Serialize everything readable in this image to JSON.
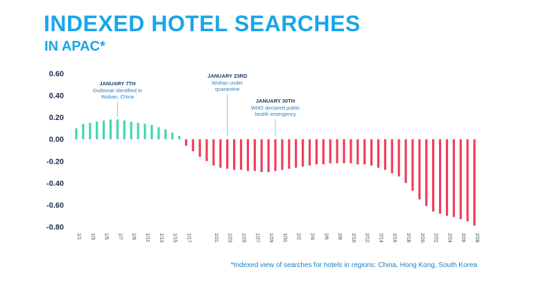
{
  "header": {
    "title": "INDEXED HOTEL SEARCHES",
    "subtitle": "IN APAC*"
  },
  "footnote": "*Indexed view of searches for hotels in regions: China, Hong Kong, South Korea",
  "colors": {
    "title": "#1aa6e8",
    "positive": "#3fd6b0",
    "negative": "#ee3d5b",
    "annotation_line": "#7cc8ee"
  },
  "chart_data": {
    "type": "bar",
    "title": "INDEXED HOTEL SEARCHES",
    "subtitle": "IN APAC*",
    "xlabel": "",
    "ylabel": "",
    "ylim": [
      -0.8,
      0.6
    ],
    "yticks": [
      "0.60",
      "0.40",
      "0.20",
      "0.00",
      "-0.20",
      "-0.40",
      "-0.60",
      "-0.80"
    ],
    "grid": false,
    "legend": "none",
    "categories": [
      "1/1",
      "1/2",
      "1/3",
      "1/4",
      "1/5",
      "1/6",
      "1/7",
      "1/8",
      "1/9",
      "1/10",
      "1/11",
      "1/12",
      "1/13",
      "1/14",
      "1/15",
      "1/16",
      "1/17",
      "1/18",
      "1/19",
      "1/20",
      "1/21",
      "1/22",
      "1/23",
      "1/24",
      "1/25",
      "1/26",
      "1/27",
      "1/28",
      "1/29",
      "1/30",
      "1/31",
      "2/1",
      "2/2",
      "2/3",
      "2/4",
      "2/5",
      "2/6",
      "2/7",
      "2/8",
      "2/9",
      "2/10",
      "2/11",
      "2/12",
      "2/13",
      "2/14",
      "2/15",
      "2/16",
      "2/17",
      "2/18",
      "2/19",
      "2/20",
      "2/21",
      "2/22",
      "2/23",
      "2/24",
      "2/25",
      "2/26",
      "2/27",
      "2/28"
    ],
    "x_tick_labels": [
      "1/1",
      "1/3",
      "1/5",
      "1/7",
      "1/9",
      "1/11",
      "1/13",
      "1/15",
      "1/17",
      "1/21",
      "1/23",
      "1/25",
      "1/27",
      "1/29",
      "1/31",
      "2/2",
      "2/4",
      "2/6",
      "2/8",
      "2/10",
      "2/12",
      "2/14",
      "2/16",
      "2/18",
      "2/20",
      "2/22",
      "2/24",
      "2/26",
      "2/28"
    ],
    "values": [
      0.1,
      0.14,
      0.15,
      0.16,
      0.17,
      0.18,
      0.18,
      0.17,
      0.16,
      0.15,
      0.14,
      0.13,
      0.11,
      0.09,
      0.06,
      0.03,
      -0.06,
      -0.11,
      -0.16,
      -0.2,
      -0.24,
      -0.26,
      -0.27,
      -0.28,
      -0.28,
      -0.29,
      -0.29,
      -0.3,
      -0.3,
      -0.29,
      -0.28,
      -0.27,
      -0.26,
      -0.25,
      -0.24,
      -0.23,
      -0.23,
      -0.22,
      -0.22,
      -0.22,
      -0.22,
      -0.23,
      -0.23,
      -0.24,
      -0.26,
      -0.28,
      -0.31,
      -0.34,
      -0.4,
      -0.47,
      -0.55,
      -0.61,
      -0.66,
      -0.68,
      -0.7,
      -0.71,
      -0.73,
      -0.75,
      -0.79
    ],
    "annotations": [
      {
        "category": "1/7",
        "title": "JANUARY 7TH",
        "lines": [
          "Outbreak identified in",
          "Wuhan, China"
        ]
      },
      {
        "category": "1/23",
        "title": "JANUARY 23RD",
        "lines": [
          "Wuhan under",
          "quarantine"
        ]
      },
      {
        "category": "1/30",
        "title": "JANUARY 30TH",
        "lines": [
          "WHO declared public",
          "health emergency"
        ]
      }
    ]
  }
}
